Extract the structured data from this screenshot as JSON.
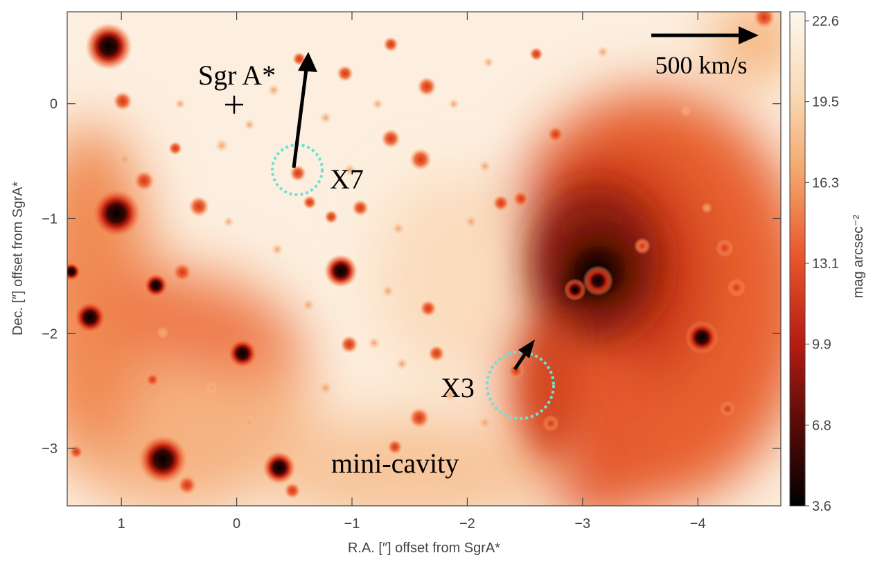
{
  "figure": {
    "xaxis": {
      "label": "R.A. [″] offset from SgrA*",
      "ticks": [
        {
          "value": 1,
          "label": "1"
        },
        {
          "value": 0,
          "label": "0"
        },
        {
          "value": -1,
          "label": "−1"
        },
        {
          "value": -2,
          "label": "−2"
        },
        {
          "value": -3,
          "label": "−3"
        },
        {
          "value": -4,
          "label": "−4"
        }
      ],
      "range": [
        1.47,
        -4.72
      ]
    },
    "yaxis": {
      "label": "Dec. [″] offset from SgrA*",
      "ticks": [
        {
          "value": 0,
          "label": "0"
        },
        {
          "value": -1,
          "label": "−1"
        },
        {
          "value": -2,
          "label": "−2"
        },
        {
          "value": -3,
          "label": "−3"
        }
      ],
      "range": [
        -3.5,
        0.8
      ]
    },
    "colorbar": {
      "label": "mag arcsec⁻²",
      "ticks": [
        "22.6",
        "19.5",
        "16.3",
        "13.1",
        "9.9",
        "6.8",
        "3.6"
      ],
      "colors": [
        "#fdf7ef",
        "#f9d9b4",
        "#f3a46a",
        "#e9542c",
        "#b71c12",
        "#5a0b07",
        "#000000"
      ]
    },
    "annotations": {
      "sgra_label": "Sgr A*",
      "x7_label": "X7",
      "x3_label": "X3",
      "cavity_label": "mini-cavity",
      "scale_label": "500 km/s"
    },
    "colors": {
      "marker_circle": "#6fe0d6",
      "arrow": "#000000",
      "background_glow": "#fdf1e4"
    }
  }
}
